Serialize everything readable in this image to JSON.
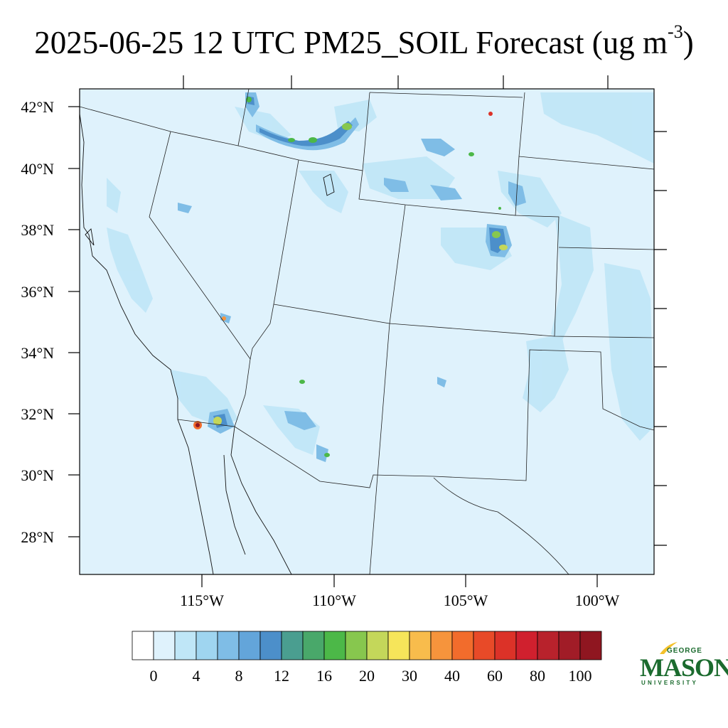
{
  "title": {
    "main": "2025-06-25 12 UTC PM25_SOIL Forecast (ug m",
    "exponent": "-3",
    "close": ")"
  },
  "map": {
    "lat_labels": [
      "42°N",
      "40°N",
      "38°N",
      "36°N",
      "34°N",
      "32°N",
      "30°N",
      "28°N"
    ],
    "lon_labels": [
      "115°W",
      "110°W",
      "105°W",
      "100°W"
    ],
    "background_color": "#dff2fc",
    "plume_colors": [
      "#bfe6f7",
      "#9fd5f0",
      "#7fbde6",
      "#63a5da",
      "#4c8fca",
      "#4a9e90",
      "#49a86a",
      "#4cb848",
      "#87c74e",
      "#c4d75a",
      "#f6e55a",
      "#f8bc4c",
      "#f6943c",
      "#f26c2c",
      "#e84a28",
      "#dc3228",
      "#d0202e",
      "#b8222c",
      "#a11c27",
      "#8f1620"
    ]
  },
  "colorbar": {
    "labels": [
      "0",
      "4",
      "8",
      "12",
      "16",
      "20",
      "30",
      "40",
      "60",
      "80",
      "100"
    ],
    "colors": [
      "#ffffff",
      "#dff2fc",
      "#bfe6f7",
      "#9fd5f0",
      "#7fbde6",
      "#63a5da",
      "#4c8fca",
      "#4a9e90",
      "#49a86a",
      "#4cb848",
      "#87c74e",
      "#c4d75a",
      "#f6e55a",
      "#f8bc4c",
      "#f6943c",
      "#f26c2c",
      "#e84a28",
      "#dc3228",
      "#d0202e",
      "#b8222c",
      "#a11c27",
      "#8f1620"
    ]
  },
  "logo": {
    "line1": "GEORGE",
    "line2": "MASON",
    "line3": "UNIVERSITY",
    "color": "#1b6b2e",
    "accent": "#f3c12b"
  }
}
